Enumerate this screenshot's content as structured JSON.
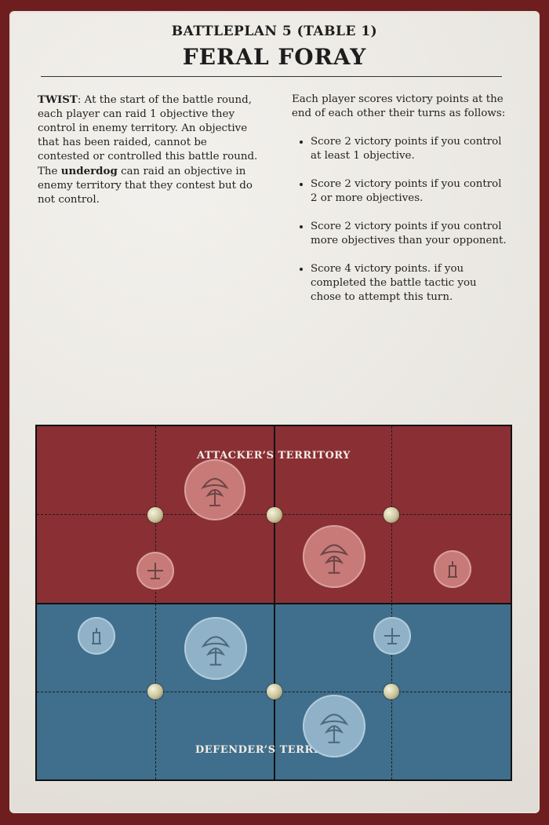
{
  "header": {
    "subtitle": "BATTLEPLAN 5 (TABLE 1)",
    "title": "FERAL FORAY"
  },
  "twist": {
    "label": "TWIST",
    "text_1": ": At the start of the battle round, each player can raid 1 objective they control in enemy territory. An objective that has been raided, cannot be contested or controlled this battle round. The ",
    "underdog": "underdog",
    "text_2": " can raid an objective in enemy territory that they contest but do not control."
  },
  "scoring": {
    "intro": "Each player scores victory points at the end of each other their turns as follows:",
    "items": [
      "Score 2 victory points if you control at least 1 objective.",
      "Score 2 victory points if you control 2 or more objectives.",
      "Score 2 victory points if you control more objectives than your opponent.",
      "Score 4 victory points. if you completed the battle tactic you chose to attempt this turn."
    ]
  },
  "map": {
    "attacker_label": "ATTACKER’S TERRITORY",
    "defender_label": "DEFENDER’S TERRITORY",
    "colors": {
      "attacker": "#8a3035",
      "defender": "#3f6f8c",
      "objective": "#d8d2aa"
    },
    "terrain_icons": [
      "tree-icon",
      "ruin-icon",
      "statue-icon"
    ]
  }
}
